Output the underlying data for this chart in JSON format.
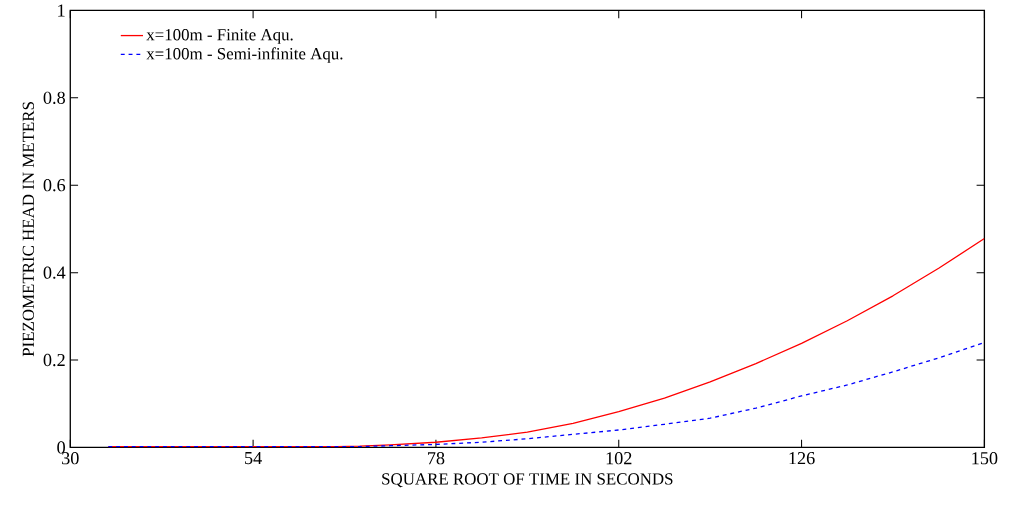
{
  "chart_data": {
    "type": "line",
    "xlabel": "SQUARE ROOT OF TIME IN SECONDS",
    "ylabel": "PIEZOMETRIC HEAD IN METERS",
    "x": [
      35,
      45,
      55,
      65,
      68,
      72,
      78,
      84,
      90,
      96,
      102,
      108,
      114,
      120,
      126,
      132,
      138,
      144,
      150
    ],
    "series": [
      {
        "name": "x=100m - Finite Aqu.",
        "color": "#ff0000",
        "line_style": "solid",
        "values": [
          0.002,
          0.002,
          0.002,
          0.002,
          0.003,
          0.006,
          0.012,
          0.022,
          0.035,
          0.055,
          0.082,
          0.113,
          0.15,
          0.192,
          0.238,
          0.29,
          0.347,
          0.41,
          0.478
        ]
      },
      {
        "name": "x=100m - Semi-infinite Aqu.",
        "color": "#0000ff",
        "line_style": "dashed",
        "values": [
          0.002,
          0.002,
          0.002,
          0.002,
          0.002,
          0.004,
          0.007,
          0.012,
          0.02,
          0.03,
          0.04,
          0.053,
          0.067,
          0.09,
          0.118,
          0.143,
          0.173,
          0.205,
          0.24
        ]
      }
    ],
    "xlim": [
      30,
      150
    ],
    "ylim": [
      0,
      1
    ],
    "xticks": [
      30,
      54,
      78,
      102,
      126,
      150
    ],
    "yticks": [
      0,
      0.2,
      0.4,
      0.6,
      0.8,
      1
    ],
    "legend": "top left",
    "grid": false
  }
}
